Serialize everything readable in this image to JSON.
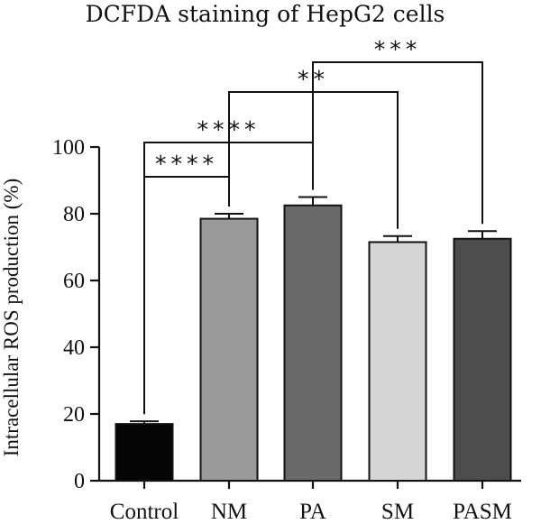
{
  "chart_data": {
    "type": "bar",
    "title": "DCFDA staining of HepG2 cells",
    "xlabel": "",
    "ylabel": "Intracellular ROS production (%)",
    "ylim": [
      0,
      100
    ],
    "yticks": [
      0,
      20,
      40,
      60,
      80,
      100
    ],
    "categories": [
      "Control",
      "NM",
      "PA",
      "SM",
      "PASM"
    ],
    "values": [
      17,
      78.5,
      82.5,
      71.5,
      72.5
    ],
    "errors": [
      0.8,
      1.5,
      2.5,
      1.8,
      2.3
    ],
    "colors": [
      "#050505",
      "#9a9a9a",
      "#6a6a6a",
      "#d5d5d5",
      "#4d4d4d"
    ],
    "significance": [
      {
        "from": "Control",
        "to": "NM",
        "label": "****"
      },
      {
        "from": "Control",
        "to": "PA",
        "label": "****"
      },
      {
        "from": "NM",
        "to": "SM",
        "label": "**"
      },
      {
        "from": "PA",
        "to": "PASM",
        "label": "***"
      }
    ],
    "grid": false,
    "legend": "none"
  }
}
